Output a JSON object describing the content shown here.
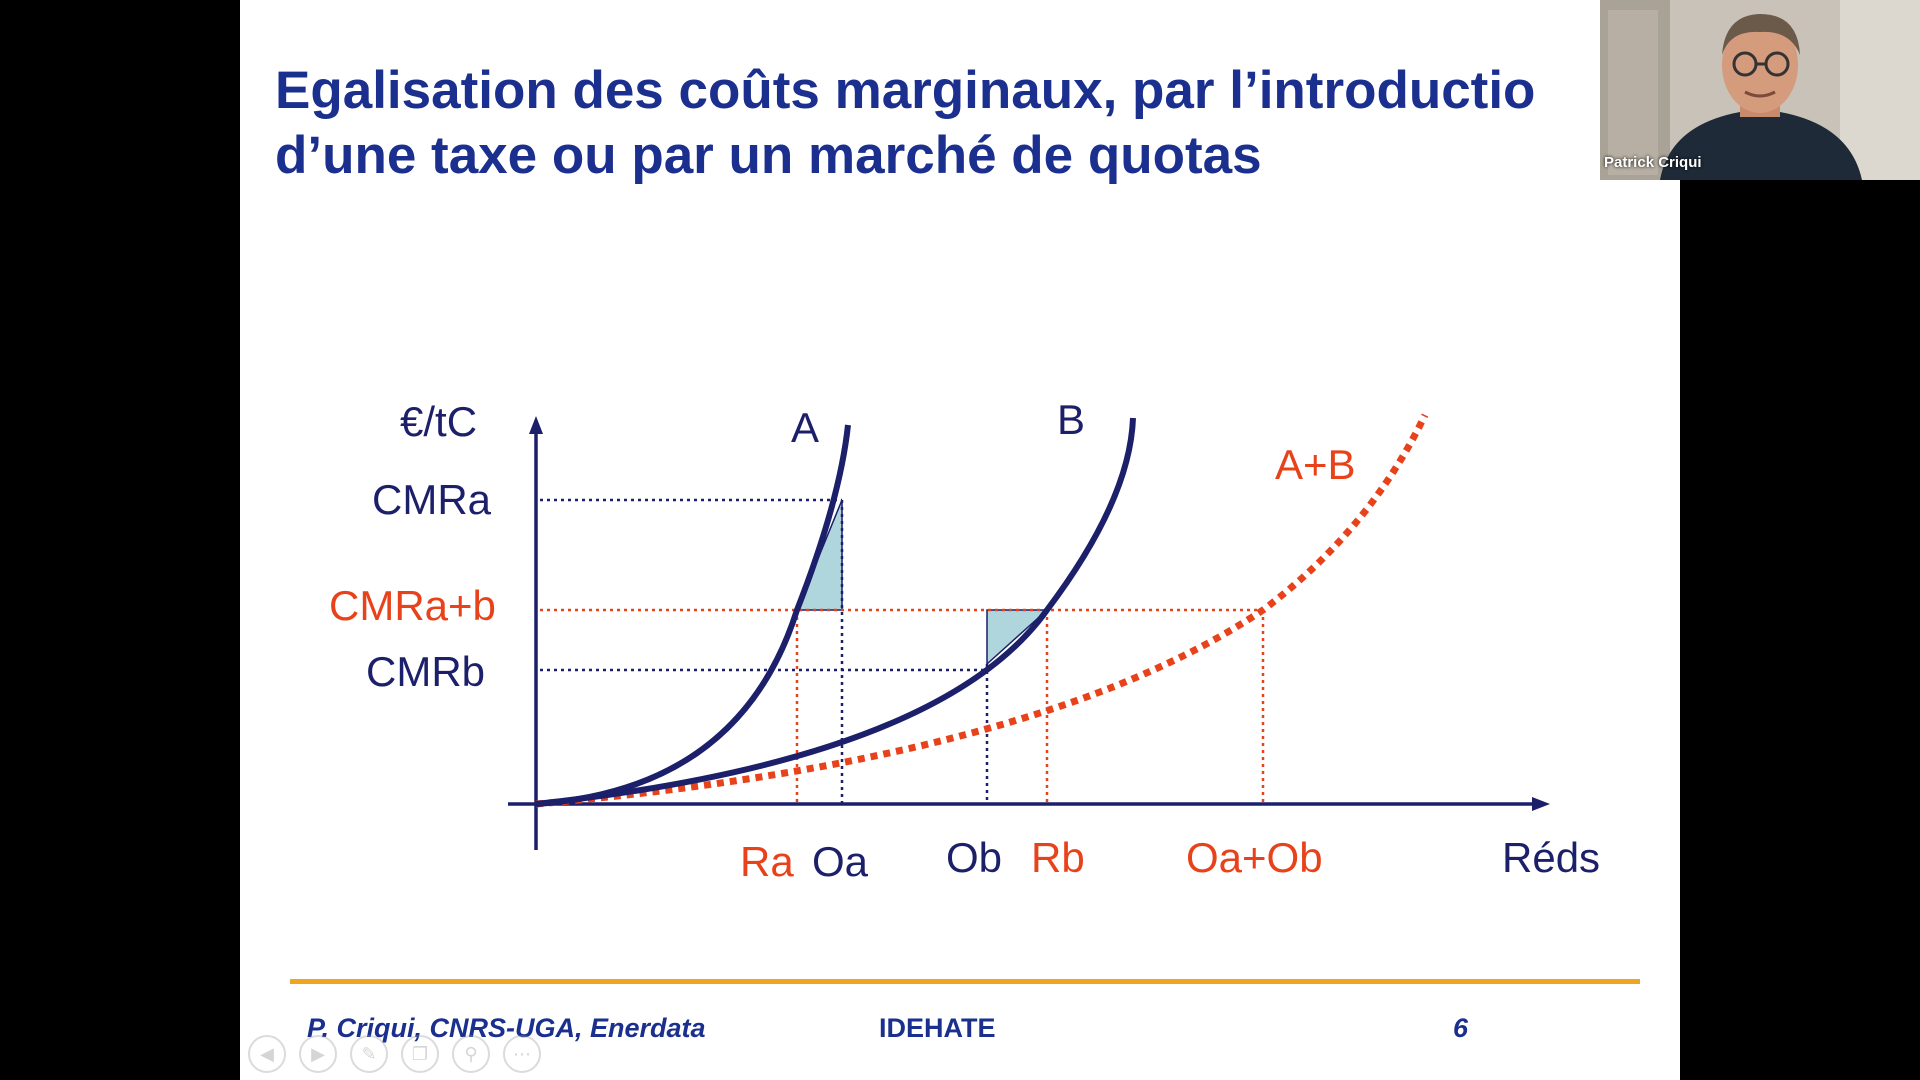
{
  "slide": {
    "title_line1": "Egalisation des coûts marginaux, par l’introductio",
    "title_line2": "d’une taxe ou par un marché de quotas",
    "footer_author": "P. Criqui, CNRS-UGA, Enerdata",
    "footer_event": "IDEHATE",
    "page_number": "6"
  },
  "diagram": {
    "y_axis_label": "€/tC",
    "x_axis_label": "Réds",
    "curve_a_label": "A",
    "curve_b_label": "B",
    "curve_ab_label": "A+B",
    "y_labels": {
      "cmra": "CMRa",
      "cmrab": "CMRa+b",
      "cmrb": "CMRb"
    },
    "x_labels": {
      "ra": "Ra",
      "oa": "Oa",
      "ob": "Ob",
      "rb": "Rb",
      "oaob": "Oa+Ob"
    }
  },
  "colors": {
    "title": "#1b2f8e",
    "curve_navy": "#1c1f6a",
    "curve_red": "#e8421b",
    "footer_rule": "#f0a522",
    "triangle_fill": "#aed6dc"
  },
  "navigation": [
    "back-icon",
    "forward-icon",
    "pen-icon",
    "slides-icon",
    "zoom-icon",
    "more-icon"
  ],
  "video": {
    "participant_name": "Patrick Criqui"
  }
}
